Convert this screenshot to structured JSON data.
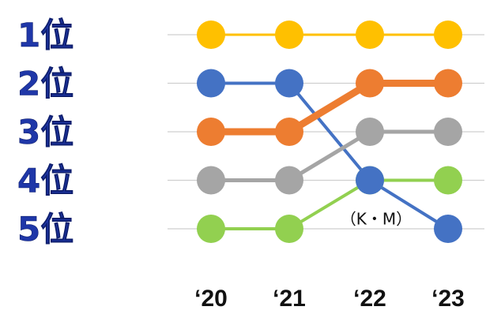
{
  "chart_data": {
    "type": "line",
    "title": "",
    "xlabel": "",
    "ylabel": "",
    "categories": [
      "‘20",
      "‘21",
      "‘22",
      "‘23"
    ],
    "rank_labels": [
      "1位",
      "2位",
      "3位",
      "4位",
      "5位"
    ],
    "ylim": [
      1,
      5
    ],
    "y_reversed": true,
    "grid": true,
    "legend": "none",
    "series": [
      {
        "color": "#ffc000",
        "values": [
          1,
          1,
          1,
          1
        ]
      },
      {
        "color": "#4472c4",
        "values": [
          2,
          2,
          4,
          5
        ]
      },
      {
        "color": "#ed7d31",
        "values": [
          3,
          3,
          2,
          2
        ]
      },
      {
        "color": "#a5a5a5",
        "values": [
          4,
          4,
          3,
          3
        ]
      },
      {
        "color": "#92d050",
        "values": [
          5,
          5,
          4,
          4
        ]
      }
    ],
    "annotations": [
      {
        "text": "（K・M）",
        "series_index": 1,
        "category_index": 2
      }
    ]
  }
}
